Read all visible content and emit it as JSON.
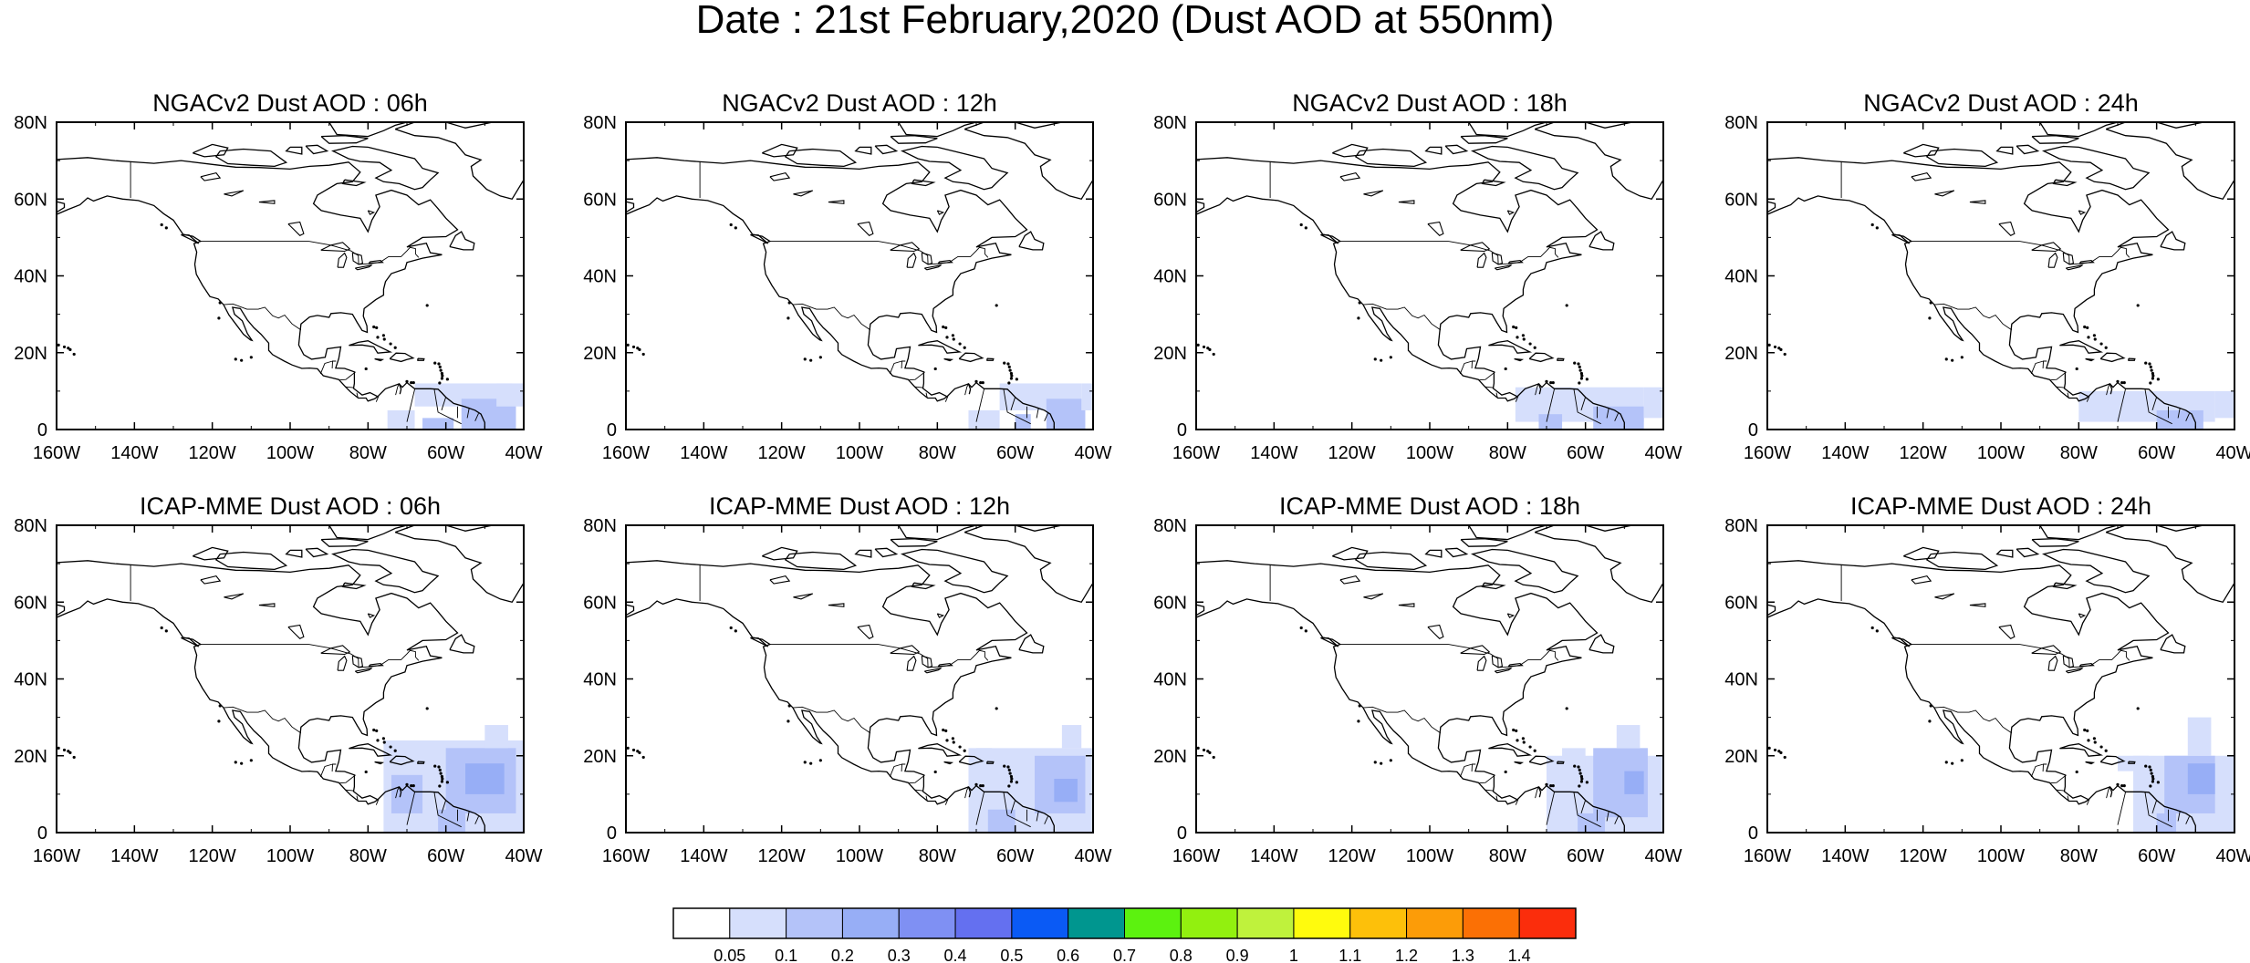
{
  "title": "Date : 21st February,2020 (Dust AOD at 550nm)",
  "lat_tick_labels": [
    "80N",
    "60N",
    "40N",
    "20N",
    "0"
  ],
  "lon_tick_labels": [
    "160W",
    "140W",
    "120W",
    "100W",
    "80W",
    "60W",
    "40W"
  ],
  "panels": [
    {
      "title": "NGACv2 Dust AOD : 06h",
      "model": "NGACv2",
      "hour": "06h"
    },
    {
      "title": "NGACv2 Dust AOD : 12h",
      "model": "NGACv2",
      "hour": "12h"
    },
    {
      "title": "NGACv2 Dust AOD : 18h",
      "model": "NGACv2",
      "hour": "18h"
    },
    {
      "title": "NGACv2 Dust AOD : 24h",
      "model": "NGACv2",
      "hour": "24h"
    },
    {
      "title": "ICAP-MME Dust AOD : 06h",
      "model": "ICAP-MME",
      "hour": "06h"
    },
    {
      "title": "ICAP-MME Dust AOD : 12h",
      "model": "ICAP-MME",
      "hour": "12h"
    },
    {
      "title": "ICAP-MME Dust AOD : 18h",
      "model": "ICAP-MME",
      "hour": "18h"
    },
    {
      "title": "ICAP-MME Dust AOD : 24h",
      "model": "ICAP-MME",
      "hour": "24h"
    }
  ],
  "colorbar": {
    "labels": [
      "0.05",
      "0.1",
      "0.2",
      "0.3",
      "0.4",
      "0.5",
      "0.6",
      "0.7",
      "0.8",
      "0.9",
      "1",
      "1.1",
      "1.2",
      "1.3",
      "1.4"
    ],
    "colors": [
      "#ffffff",
      "#d6dffc",
      "#b4c3f9",
      "#97aef6",
      "#7f90f3",
      "#6470f0",
      "#0a5af5",
      "#00968f",
      "#5cf20f",
      "#92f00f",
      "#bff23c",
      "#fffb0d",
      "#fdc00a",
      "#fc9c08",
      "#fb7005",
      "#fb2d0c"
    ]
  }
}
